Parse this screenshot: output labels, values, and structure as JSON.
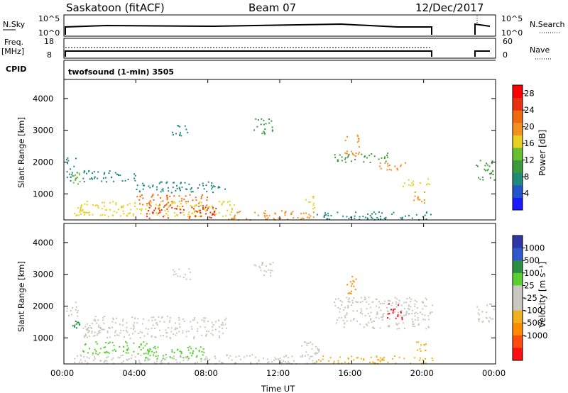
{
  "header": {
    "station": "Saskatoon (fitACF)",
    "beam": "Beam 07",
    "date": "12/Dec/2017"
  },
  "strip_labels": {
    "nsky": "N.Sky",
    "nsearch": "N.Search",
    "freq": "Freq.",
    "freq_unit": "[MHz]",
    "nave": "Nave",
    "cpid": "CPID",
    "cpid_value": "twofsound (1-min) 3505",
    "nsky_ticks": [
      "10^5",
      "10^0"
    ],
    "nsearch_ticks": [
      "10^5",
      "10^0"
    ],
    "freq_ticks": [
      "18",
      "8"
    ],
    "nave_ticks": [
      "60",
      "0"
    ]
  },
  "colors": {
    "power": [
      "#1a1aff",
      "#2255cc",
      "#1e8a78",
      "#3c9a3c",
      "#66c030",
      "#e8d020",
      "#f29020",
      "#f26a10",
      "#e83010",
      "#ff0000"
    ],
    "velocity": [
      "#2e36a8",
      "#2f58cc",
      "#2a9040",
      "#58d030",
      "#c8c8c0",
      "#c8c8c0",
      "#f0b020",
      "#ff8c00",
      "#ff4a10",
      "#ff1010"
    ]
  },
  "chart_data": [
    {
      "type": "heatmap",
      "name": "power",
      "xlabel": "",
      "ylabel": "Slant Range [km]",
      "x_ticks": [
        "00:00",
        "04:00",
        "08:00",
        "12:00",
        "16:00",
        "20:00",
        "00:00"
      ],
      "y_ticks": [
        "1000",
        "2000",
        "3000",
        "4000"
      ],
      "xlim_hours": [
        0,
        24
      ],
      "ylim_km": [
        180,
        4600
      ],
      "colorbar_label": "Power [dB]",
      "colorbar_ticks": [
        "28",
        "24",
        "20",
        "16",
        "12",
        "8",
        "4"
      ],
      "colorbar_range": [
        0,
        30
      ],
      "blobs": [
        {
          "t0": 0.1,
          "t1": 0.7,
          "r0": 1400,
          "r1": 2200,
          "v": 8
        },
        {
          "t0": 0.4,
          "t1": 0.9,
          "r0": 1300,
          "r1": 1700,
          "v": 14
        },
        {
          "t0": 1.0,
          "t1": 4.0,
          "r0": 1400,
          "r1": 1750,
          "v": 6
        },
        {
          "t0": 4.0,
          "t1": 9.0,
          "r0": 1050,
          "r1": 1400,
          "v": 8
        },
        {
          "t0": 6.0,
          "t1": 7.0,
          "r0": 2850,
          "r1": 3200,
          "v": 6
        },
        {
          "t0": 10.5,
          "t1": 11.6,
          "r0": 2900,
          "r1": 3400,
          "v": 10
        },
        {
          "t0": 0.5,
          "t1": 9.5,
          "r0": 300,
          "r1": 800,
          "v": 16
        },
        {
          "t0": 4.0,
          "t1": 8.0,
          "r0": 600,
          "r1": 1000,
          "v": 22
        },
        {
          "t0": 4.5,
          "t1": 8.5,
          "r0": 250,
          "r1": 600,
          "v": 26
        },
        {
          "t0": 9.0,
          "t1": 14.0,
          "r0": 200,
          "r1": 500,
          "v": 18
        },
        {
          "t0": 13.4,
          "t1": 14.0,
          "r0": 500,
          "r1": 950,
          "v": 16
        },
        {
          "t0": 15.0,
          "t1": 18.0,
          "r0": 2000,
          "r1": 2300,
          "v": 10
        },
        {
          "t0": 15.6,
          "t1": 16.4,
          "r0": 2200,
          "r1": 2900,
          "v": 18
        },
        {
          "t0": 17.5,
          "t1": 19.0,
          "r0": 1700,
          "r1": 2000,
          "v": 20
        },
        {
          "t0": 18.8,
          "t1": 20.4,
          "r0": 1250,
          "r1": 1500,
          "v": 16
        },
        {
          "t0": 19.4,
          "t1": 20.2,
          "r0": 700,
          "r1": 1100,
          "v": 20
        },
        {
          "t0": 14.0,
          "t1": 20.5,
          "r0": 200,
          "r1": 450,
          "v": 8
        },
        {
          "t0": 22.9,
          "t1": 23.9,
          "r0": 1450,
          "r1": 2100,
          "v": 10
        }
      ]
    },
    {
      "type": "heatmap",
      "name": "velocity",
      "xlabel": "Time UT",
      "ylabel": "Slant Range [km]",
      "x_ticks": [
        "00:00",
        "04:00",
        "08:00",
        "12:00",
        "16:00",
        "20:00",
        "00:00"
      ],
      "y_ticks": [
        "1000",
        "2000",
        "3000",
        "4000"
      ],
      "xlim_hours": [
        0,
        24
      ],
      "ylim_km": [
        180,
        4600
      ],
      "colorbar_label": "Velocity [m s⁻¹]",
      "colorbar_ticks": [
        "1000",
        "500",
        "100",
        "25",
        "-25",
        "-100",
        "-500",
        "-1000"
      ],
      "blobs": [
        {
          "t0": 0.1,
          "t1": 0.8,
          "r0": 1700,
          "r1": 2200,
          "c": 4
        },
        {
          "t0": 0.3,
          "t1": 0.9,
          "r0": 1300,
          "r1": 1650,
          "c": 2
        },
        {
          "t0": 1.0,
          "t1": 9.0,
          "r0": 1000,
          "r1": 1700,
          "c": 4
        },
        {
          "t0": 6.0,
          "t1": 7.0,
          "r0": 2850,
          "r1": 3200,
          "c": 4
        },
        {
          "t0": 10.5,
          "t1": 11.6,
          "r0": 2900,
          "r1": 3400,
          "c": 4
        },
        {
          "t0": 1.0,
          "t1": 5.0,
          "r0": 500,
          "r1": 900,
          "c": 3
        },
        {
          "t0": 4.0,
          "t1": 8.0,
          "r0": 350,
          "r1": 750,
          "c": 3
        },
        {
          "t0": 0.5,
          "t1": 14.0,
          "r0": 200,
          "r1": 500,
          "c": 4
        },
        {
          "t0": 13.0,
          "t1": 14.2,
          "r0": 400,
          "r1": 900,
          "c": 4
        },
        {
          "t0": 15.0,
          "t1": 20.5,
          "r0": 1300,
          "r1": 2300,
          "c": 4
        },
        {
          "t0": 15.7,
          "t1": 16.3,
          "r0": 2400,
          "r1": 3000,
          "c": 7
        },
        {
          "t0": 17.9,
          "t1": 18.8,
          "r0": 1600,
          "r1": 2100,
          "c": 9
        },
        {
          "t0": 19.5,
          "t1": 20.3,
          "r0": 550,
          "r1": 900,
          "c": 6
        },
        {
          "t0": 14.0,
          "t1": 20.5,
          "r0": 200,
          "r1": 450,
          "c": 6
        },
        {
          "t0": 22.9,
          "t1": 23.9,
          "r0": 1500,
          "r1": 2100,
          "c": 4
        }
      ]
    }
  ]
}
